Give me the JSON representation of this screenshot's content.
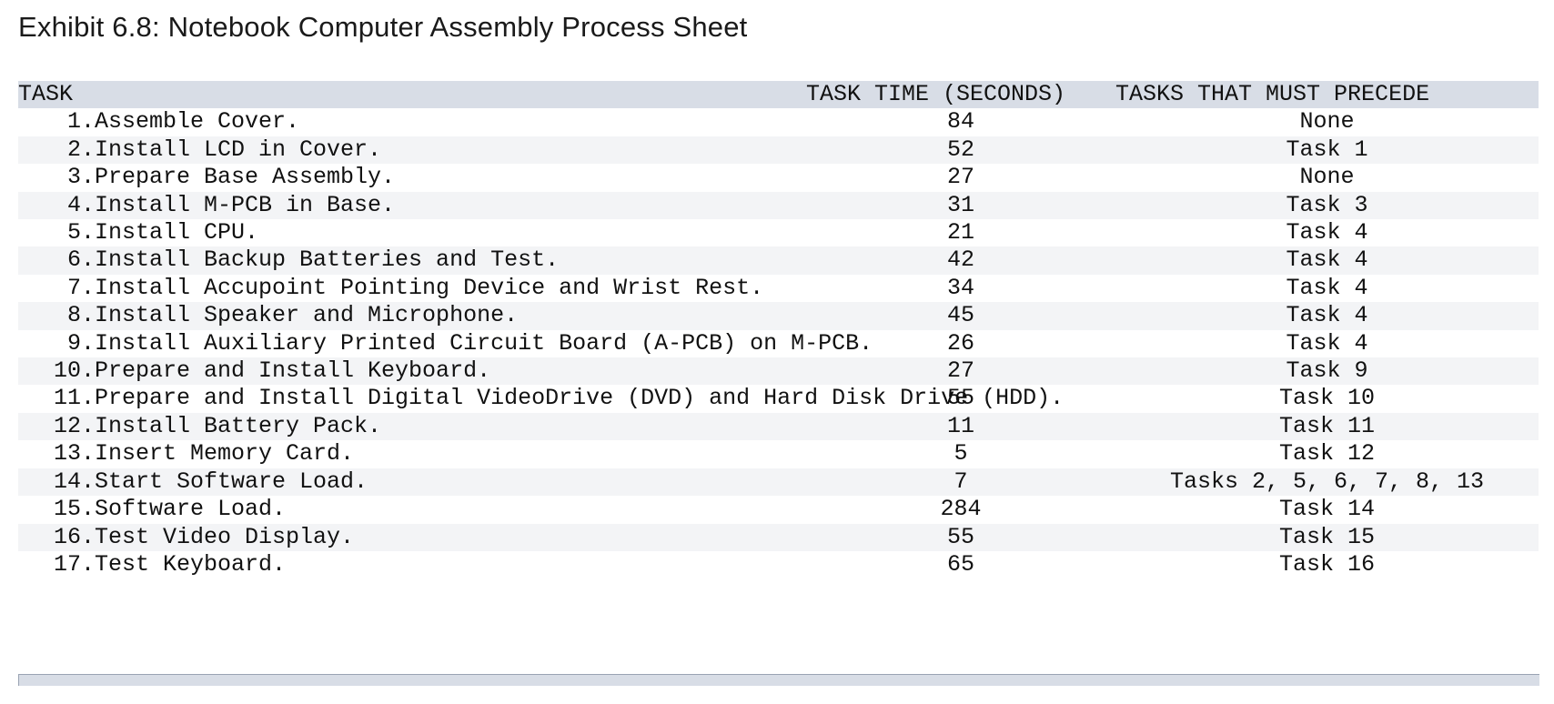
{
  "title": "Exhibit 6.8: Notebook Computer Assembly Process Sheet",
  "columns": {
    "task": "TASK",
    "time": "TASK TIME (SECONDS)",
    "precede": "TASKS THAT MUST PRECEDE"
  },
  "rows": [
    {
      "num": "1.",
      "desc": "Assemble Cover.",
      "time": "84",
      "precede": "None"
    },
    {
      "num": "2.",
      "desc": "Install LCD in Cover.",
      "time": "52",
      "precede": "Task 1"
    },
    {
      "num": "3.",
      "desc": "Prepare Base Assembly.",
      "time": "27",
      "precede": "None"
    },
    {
      "num": "4.",
      "desc": "Install M-PCB in Base.",
      "time": "31",
      "precede": "Task 3"
    },
    {
      "num": "5.",
      "desc": "Install CPU.",
      "time": "21",
      "precede": "Task 4"
    },
    {
      "num": "6.",
      "desc": "Install Backup Batteries and Test.",
      "time": "42",
      "precede": "Task 4"
    },
    {
      "num": "7.",
      "desc": "Install Accupoint Pointing Device and Wrist Rest.",
      "time": "34",
      "precede": "Task 4"
    },
    {
      "num": "8.",
      "desc": "Install Speaker and Microphone.",
      "time": "45",
      "precede": "Task 4"
    },
    {
      "num": "9.",
      "desc": "Install Auxiliary Printed Circuit Board (A-PCB) on M-PCB.",
      "time": "26",
      "precede": "Task 4"
    },
    {
      "num": "10.",
      "desc": "Prepare and Install Keyboard.",
      "time": "27",
      "precede": "Task 9"
    },
    {
      "num": "11.",
      "desc": "Prepare and Install Digital VideoDrive (DVD) and Hard Disk Drive (HDD).",
      "time": "55",
      "precede": "Task 10"
    },
    {
      "num": "12.",
      "desc": "Install Battery Pack.",
      "time": "11",
      "precede": "Task 11"
    },
    {
      "num": "13.",
      "desc": "Insert Memory Card.",
      "time": "5",
      "precede": "Task 12"
    },
    {
      "num": "14.",
      "desc": "Start Software Load.",
      "time": "7",
      "precede": "Tasks 2, 5, 6, 7, 8, 13"
    },
    {
      "num": "15.",
      "desc": "Software Load.",
      "time": "284",
      "precede": "Task 14"
    },
    {
      "num": "16.",
      "desc": "Test Video Display.",
      "time": "55",
      "precede": "Task 15"
    },
    {
      "num": "17.",
      "desc": "Test Keyboard.",
      "time": "65",
      "precede": "Task 16"
    }
  ]
}
